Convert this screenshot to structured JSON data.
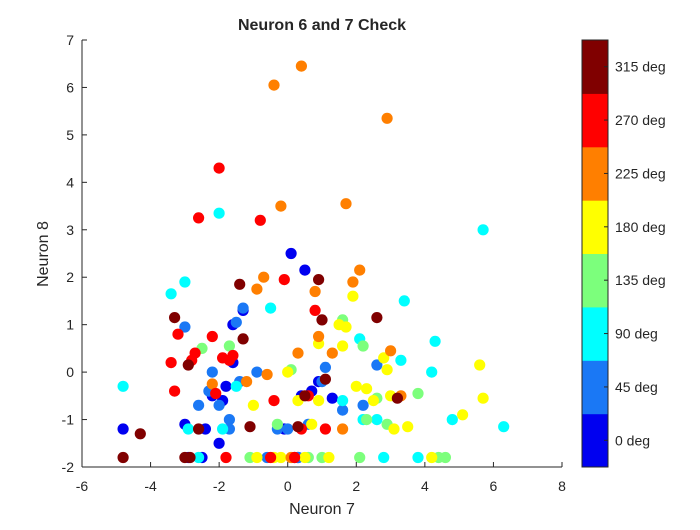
{
  "chart_data": {
    "type": "scatter",
    "title": "Neuron 6 and 7 Check",
    "xlabel": "Neuron 7",
    "ylabel": "Neuron 8",
    "xlim": [
      -6,
      8
    ],
    "ylim": [
      -2,
      7
    ],
    "xticks": [
      -6,
      -4,
      -2,
      0,
      2,
      4,
      6,
      8
    ],
    "yticks": [
      -2,
      -1,
      0,
      1,
      2,
      3,
      4,
      5,
      6,
      7
    ],
    "grid": false,
    "colorbar": {
      "labels": [
        "0 deg",
        "45 deg",
        "90 deg",
        "135 deg",
        "180 deg",
        "225 deg",
        "270 deg",
        "315 deg"
      ],
      "colors": [
        "#0000f0",
        "#1a78f5",
        "#00ffff",
        "#7cff7c",
        "#ffff00",
        "#ff7f00",
        "#ff0000",
        "#800000"
      ]
    },
    "series": [
      {
        "color_index": 0,
        "points": [
          [
            -4.8,
            -1.2
          ],
          [
            -3,
            -1.1
          ],
          [
            -2.9,
            -1.8
          ],
          [
            -2.5,
            -1.8
          ],
          [
            -2.4,
            -1.2
          ],
          [
            -2.2,
            -0.5
          ],
          [
            -2.0,
            -1.5
          ],
          [
            -1.9,
            -0.6
          ],
          [
            -1.8,
            -0.3
          ],
          [
            -1.6,
            0.2
          ],
          [
            -1.6,
            1.0
          ],
          [
            -1.3,
            1.3
          ],
          [
            -0.1,
            -1.2
          ],
          [
            0.1,
            2.5
          ],
          [
            0.2,
            -1.8
          ],
          [
            0.4,
            -0.5
          ],
          [
            0.5,
            2.15
          ],
          [
            0.7,
            -0.4
          ],
          [
            0.9,
            -0.2
          ],
          [
            1.3,
            -0.55
          ],
          [
            0.3,
            -1.8
          ]
        ]
      },
      {
        "color_index": 1,
        "points": [
          [
            -3.0,
            0.95
          ],
          [
            -2.6,
            -0.7
          ],
          [
            -2.3,
            -0.4
          ],
          [
            -2.2,
            0.0
          ],
          [
            -2.0,
            -0.7
          ],
          [
            -1.7,
            -1.0
          ],
          [
            -1.5,
            1.05
          ],
          [
            -1.4,
            -0.2
          ],
          [
            -1.3,
            1.35
          ],
          [
            -0.9,
            0.0
          ],
          [
            -0.6,
            -1.8
          ],
          [
            0.0,
            -1.2
          ],
          [
            0.3,
            -1.8
          ],
          [
            0.6,
            -1.1
          ],
          [
            1.0,
            -0.2
          ],
          [
            1.1,
            0.1
          ],
          [
            1.6,
            -0.8
          ],
          [
            2.2,
            -0.7
          ],
          [
            2.6,
            0.15
          ],
          [
            -1.7,
            -1.2
          ],
          [
            -0.3,
            -1.2
          ]
        ]
      },
      {
        "color_index": 2,
        "points": [
          [
            -4.8,
            -0.3
          ],
          [
            -3.4,
            1.65
          ],
          [
            -3.0,
            1.9
          ],
          [
            -2.9,
            -1.2
          ],
          [
            -2.0,
            3.35
          ],
          [
            -1.9,
            -1.2
          ],
          [
            -1.5,
            -0.3
          ],
          [
            -0.5,
            1.35
          ],
          [
            1.6,
            -0.6
          ],
          [
            2.1,
            0.7
          ],
          [
            2.2,
            -1.0
          ],
          [
            2.6,
            -1.0
          ],
          [
            3.3,
            0.25
          ],
          [
            3.4,
            1.5
          ],
          [
            3.8,
            -1.8
          ],
          [
            4.2,
            0.0
          ],
          [
            4.3,
            0.65
          ],
          [
            4.8,
            -1.0
          ],
          [
            5.7,
            3.0
          ],
          [
            6.3,
            -1.15
          ],
          [
            -2.6,
            -1.8
          ],
          [
            2.8,
            -1.8
          ]
        ]
      },
      {
        "color_index": 3,
        "points": [
          [
            -2.5,
            0.5
          ],
          [
            -1.7,
            0.55
          ],
          [
            -0.3,
            -1.1
          ],
          [
            0.1,
            0.05
          ],
          [
            1.0,
            -1.8
          ],
          [
            1.6,
            1.1
          ],
          [
            2.2,
            0.55
          ],
          [
            2.3,
            -1.0
          ],
          [
            2.6,
            -0.55
          ],
          [
            2.9,
            -1.1
          ],
          [
            3.8,
            -0.45
          ],
          [
            4.4,
            -1.8
          ],
          [
            4.6,
            -1.8
          ],
          [
            -1.1,
            -1.8
          ],
          [
            0.6,
            -1.8
          ],
          [
            2.1,
            -1.8
          ]
        ]
      },
      {
        "color_index": 4,
        "points": [
          [
            -1.0,
            -0.7
          ],
          [
            -0.9,
            -1.8
          ],
          [
            -0.2,
            -1.8
          ],
          [
            0.0,
            0.0
          ],
          [
            0.3,
            -0.6
          ],
          [
            0.5,
            -1.8
          ],
          [
            0.7,
            -1.1
          ],
          [
            0.9,
            0.6
          ],
          [
            0.9,
            -0.6
          ],
          [
            1.2,
            -1.8
          ],
          [
            1.5,
            1.0
          ],
          [
            1.6,
            0.55
          ],
          [
            1.7,
            0.95
          ],
          [
            2.0,
            -0.3
          ],
          [
            2.3,
            -0.35
          ],
          [
            2.5,
            -0.6
          ],
          [
            2.8,
            0.3
          ],
          [
            2.9,
            0.05
          ],
          [
            3.0,
            -0.5
          ],
          [
            3.1,
            -1.2
          ],
          [
            3.5,
            -1.15
          ],
          [
            4.2,
            -1.8
          ],
          [
            5.1,
            -0.9
          ],
          [
            5.6,
            0.15
          ],
          [
            5.7,
            -0.55
          ],
          [
            -0.4,
            -1.8
          ],
          [
            1.9,
            1.6
          ]
        ]
      },
      {
        "color_index": 5,
        "points": [
          [
            -2.2,
            -0.25
          ],
          [
            -0.9,
            1.75
          ],
          [
            -0.7,
            2.0
          ],
          [
            -0.6,
            -0.05
          ],
          [
            -0.4,
            6.05
          ],
          [
            -0.2,
            3.5
          ],
          [
            0.3,
            0.4
          ],
          [
            0.4,
            6.45
          ],
          [
            0.8,
            1.7
          ],
          [
            1.3,
            0.4
          ],
          [
            1.7,
            3.55
          ],
          [
            1.6,
            -1.2
          ],
          [
            1.9,
            1.9
          ],
          [
            2.1,
            2.15
          ],
          [
            2.9,
            5.35
          ],
          [
            3.0,
            0.45
          ],
          [
            3.3,
            -0.5
          ],
          [
            -1.2,
            -0.2
          ],
          [
            0.9,
            0.75
          ],
          [
            0.1,
            -1.8
          ]
        ]
      },
      {
        "color_index": 6,
        "points": [
          [
            -3.4,
            0.2
          ],
          [
            -3.3,
            -0.4
          ],
          [
            -3.2,
            0.8
          ],
          [
            -2.8,
            0.25
          ],
          [
            -2.7,
            0.4
          ],
          [
            -2.6,
            3.25
          ],
          [
            -2.2,
            0.75
          ],
          [
            -2.1,
            -0.45
          ],
          [
            -2.0,
            4.3
          ],
          [
            -1.9,
            0.3
          ],
          [
            -1.8,
            -1.8
          ],
          [
            -1.7,
            0.25
          ],
          [
            -1.6,
            0.35
          ],
          [
            -0.8,
            3.2
          ],
          [
            -0.4,
            -0.6
          ],
          [
            -0.1,
            1.95
          ],
          [
            0.2,
            -1.8
          ],
          [
            0.4,
            -1.2
          ],
          [
            0.6,
            -0.5
          ],
          [
            0.8,
            1.3
          ],
          [
            1.1,
            -1.2
          ],
          [
            -0.5,
            -1.8
          ]
        ]
      },
      {
        "color_index": 7,
        "points": [
          [
            -4.8,
            -1.8
          ],
          [
            -4.3,
            -1.3
          ],
          [
            -3.3,
            1.15
          ],
          [
            -3.0,
            -1.8
          ],
          [
            -2.9,
            0.15
          ],
          [
            -2.6,
            -1.2
          ],
          [
            -1.4,
            1.85
          ],
          [
            -1.1,
            -1.15
          ],
          [
            -1.3,
            0.7
          ],
          [
            0.3,
            -1.15
          ],
          [
            0.5,
            -0.5
          ],
          [
            0.9,
            1.95
          ],
          [
            1.0,
            1.1
          ],
          [
            1.1,
            -0.15
          ],
          [
            2.6,
            1.15
          ],
          [
            3.2,
            -0.55
          ],
          [
            -2.85,
            -1.8
          ]
        ]
      }
    ]
  }
}
